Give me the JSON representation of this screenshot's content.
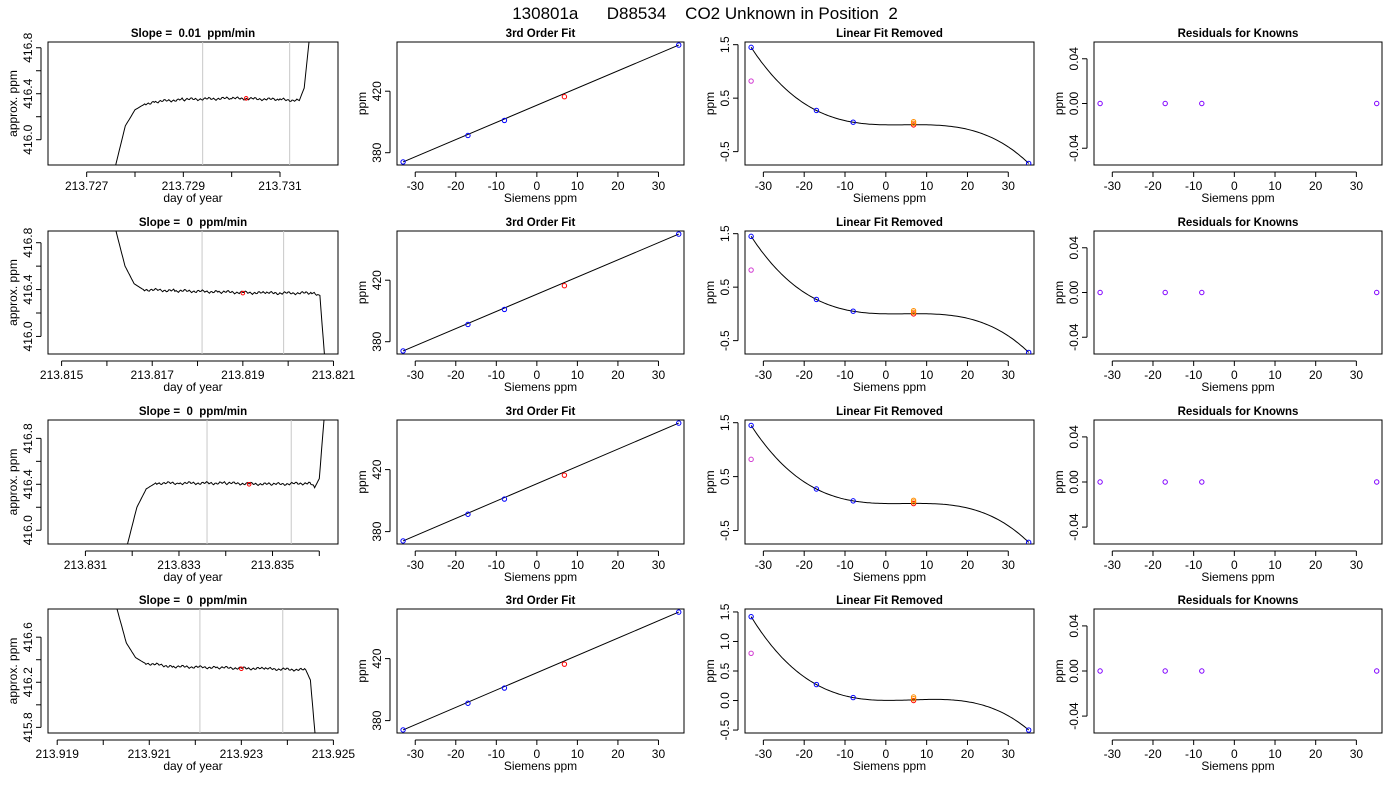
{
  "figure_title": "130801a      D88534    CO2 Unknown in Position  2",
  "colors": {
    "trace": "#000000",
    "window_line": "#c8c8c8",
    "mean_marker": "#ff0000",
    "known": "#0000ff",
    "unknown": "#ff0000",
    "unknown_alt": "#ff8c00",
    "lin_extra": "#d23cd2",
    "residual": "#8000ff"
  },
  "chart_data": [
    {
      "type": "line",
      "row": 1,
      "panel": "trace",
      "title": "Slope =  0.01  ppm/min",
      "xlabel": "day of year",
      "ylabel": "approx. ppm",
      "xlim": [
        213.7262,
        213.7322
      ],
      "ylim": [
        415.78,
        416.85
      ],
      "xticks": [
        213.727,
        213.728,
        213.729,
        213.73,
        213.731
      ],
      "xtick_labels": [
        "213.727",
        "",
        "213.729",
        "",
        "213.731"
      ],
      "yticks": [
        416.0,
        416.2,
        416.4,
        416.6,
        416.8
      ],
      "ytick_labels": [
        "416.0",
        "",
        "416.4",
        "",
        "416.8"
      ],
      "window": [
        213.7294,
        213.7312
      ],
      "mean_marker": {
        "x": 213.7303,
        "y": 416.36
      },
      "trace": [
        [
          213.7276,
          415.78
        ],
        [
          213.7278,
          416.12
        ],
        [
          213.728,
          416.26
        ],
        [
          213.7282,
          416.31
        ],
        [
          213.7284,
          416.33
        ],
        [
          213.729,
          416.35
        ],
        [
          213.73,
          416.36
        ],
        [
          213.731,
          416.35
        ],
        [
          213.7314,
          416.34
        ],
        [
          213.7315,
          416.45
        ],
        [
          213.7316,
          416.85
        ]
      ]
    },
    {
      "type": "scatter",
      "row": 1,
      "panel": "fit3",
      "title": "3rd Order Fit",
      "xlabel": "Siemens ppm",
      "ylabel": "ppm",
      "xlim": [
        -34.5,
        36.3
      ],
      "ylim": [
        372,
        452
      ],
      "xticks": [
        -30,
        -20,
        -10,
        0,
        10,
        20,
        30
      ],
      "yticks": [
        380,
        420
      ],
      "line": [
        [
          -33,
          374
        ],
        [
          35,
          450
        ]
      ],
      "knowns": [
        {
          "x": -33,
          "y": 374
        },
        {
          "x": -17,
          "y": 391.2
        },
        {
          "x": -8,
          "y": 401
        },
        {
          "x": 35,
          "y": 450
        }
      ],
      "unknown": {
        "x": 6.8,
        "y": 416.4
      }
    },
    {
      "type": "scatter",
      "row": 1,
      "panel": "linfit",
      "title": "Linear Fit Removed",
      "xlabel": "Siemens ppm",
      "ylabel": "ppm",
      "xlim": [
        -34.5,
        36.3
      ],
      "ylim": [
        -0.75,
        1.55
      ],
      "xticks": [
        -30,
        -20,
        -10,
        0,
        10,
        20,
        30
      ],
      "yticks": [
        -0.5,
        0.5,
        1.5
      ],
      "knowns": [
        {
          "x": -33,
          "y": 1.45
        },
        {
          "x": -17,
          "y": 0.27
        },
        {
          "x": -8,
          "y": 0.05
        },
        {
          "x": 35,
          "y": -0.72
        }
      ],
      "unknowns": [
        {
          "x": 6.8,
          "y": 0.0
        },
        {
          "x": 6.8,
          "y": 0.03
        },
        {
          "x": 6.8,
          "y": 0.06
        }
      ],
      "extra": {
        "x": -33,
        "y": 0.82
      }
    },
    {
      "type": "scatter",
      "row": 1,
      "panel": "resid",
      "title": "Residuals for Knowns",
      "xlabel": "Siemens ppm",
      "ylabel": "ppm",
      "xlim": [
        -34.5,
        36.3
      ],
      "ylim": [
        -0.055,
        0.055
      ],
      "xticks": [
        -30,
        -20,
        -10,
        0,
        10,
        20,
        30
      ],
      "yticks": [
        -0.04,
        0.0,
        0.04
      ],
      "points": [
        {
          "x": -33,
          "y": 0
        },
        {
          "x": -17,
          "y": 0
        },
        {
          "x": -8,
          "y": 0
        },
        {
          "x": 35,
          "y": 0
        }
      ]
    },
    {
      "type": "line",
      "row": 2,
      "panel": "trace",
      "title": "Slope =  0  ppm/min",
      "xlabel": "day of year",
      "ylabel": "approx. ppm",
      "xlim": [
        213.8147,
        213.8211
      ],
      "ylim": [
        415.85,
        416.9
      ],
      "xticks": [
        213.815,
        213.816,
        213.817,
        213.818,
        213.819,
        213.82,
        213.821
      ],
      "xtick_labels": [
        "213.815",
        "",
        "213.817",
        "",
        "213.819",
        "",
        "213.821"
      ],
      "yticks": [
        416.0,
        416.2,
        416.4,
        416.6,
        416.8
      ],
      "ytick_labels": [
        "416.0",
        "",
        "416.4",
        "",
        "416.8"
      ],
      "window": [
        213.8181,
        213.8199
      ],
      "mean_marker": {
        "x": 213.819,
        "y": 416.37
      },
      "trace": [
        [
          213.8162,
          416.9
        ],
        [
          213.8164,
          416.6
        ],
        [
          213.8166,
          416.45
        ],
        [
          213.8168,
          416.4
        ],
        [
          213.8175,
          416.39
        ],
        [
          213.8185,
          416.38
        ],
        [
          213.8195,
          416.37
        ],
        [
          213.8205,
          416.37
        ],
        [
          213.8207,
          416.35
        ],
        [
          213.8208,
          415.85
        ]
      ]
    },
    {
      "type": "scatter",
      "row": 2,
      "panel": "fit3",
      "title": "3rd Order Fit",
      "xlabel": "Siemens ppm",
      "ylabel": "ppm",
      "xlim": [
        -34.5,
        36.3
      ],
      "ylim": [
        372,
        452
      ],
      "xticks": [
        -30,
        -20,
        -10,
        0,
        10,
        20,
        30
      ],
      "yticks": [
        380,
        420
      ],
      "line": [
        [
          -33,
          374
        ],
        [
          35,
          450
        ]
      ],
      "knowns": [
        {
          "x": -33,
          "y": 374
        },
        {
          "x": -17,
          "y": 391.2
        },
        {
          "x": -8,
          "y": 401
        },
        {
          "x": 35,
          "y": 450
        }
      ],
      "unknown": {
        "x": 6.8,
        "y": 416.4
      }
    },
    {
      "type": "scatter",
      "row": 2,
      "panel": "linfit",
      "title": "Linear Fit Removed",
      "xlabel": "Siemens ppm",
      "ylabel": "ppm",
      "xlim": [
        -34.5,
        36.3
      ],
      "ylim": [
        -0.75,
        1.55
      ],
      "xticks": [
        -30,
        -20,
        -10,
        0,
        10,
        20,
        30
      ],
      "yticks": [
        -0.5,
        0.5,
        1.5
      ],
      "knowns": [
        {
          "x": -33,
          "y": 1.45
        },
        {
          "x": -17,
          "y": 0.27
        },
        {
          "x": -8,
          "y": 0.05
        },
        {
          "x": 35,
          "y": -0.72
        }
      ],
      "unknowns": [
        {
          "x": 6.8,
          "y": 0.0
        },
        {
          "x": 6.8,
          "y": 0.03
        },
        {
          "x": 6.8,
          "y": 0.06
        }
      ],
      "extra": {
        "x": -33,
        "y": 0.82
      }
    },
    {
      "type": "scatter",
      "row": 2,
      "panel": "resid",
      "title": "Residuals for Knowns",
      "xlabel": "Siemens ppm",
      "ylabel": "ppm",
      "xlim": [
        -34.5,
        36.3
      ],
      "ylim": [
        -0.055,
        0.055
      ],
      "xticks": [
        -30,
        -20,
        -10,
        0,
        10,
        20,
        30
      ],
      "yticks": [
        -0.04,
        0.0,
        0.04
      ],
      "points": [
        {
          "x": -33,
          "y": 0
        },
        {
          "x": -17,
          "y": 0
        },
        {
          "x": -8,
          "y": 0
        },
        {
          "x": 35,
          "y": 0
        }
      ]
    },
    {
      "type": "line",
      "row": 3,
      "panel": "trace",
      "title": "Slope =  0  ppm/min",
      "xlabel": "day of year",
      "ylabel": "approx. ppm",
      "xlim": [
        213.8302,
        213.8364
      ],
      "ylim": [
        415.88,
        416.96
      ],
      "xticks": [
        213.831,
        213.832,
        213.833,
        213.834,
        213.835,
        213.836
      ],
      "xtick_labels": [
        "213.831",
        "",
        "213.833",
        "",
        "213.835",
        ""
      ],
      "yticks": [
        416.0,
        416.2,
        416.4,
        416.6,
        416.8
      ],
      "ytick_labels": [
        "416.0",
        "",
        "416.4",
        "",
        "416.8"
      ],
      "window": [
        213.8336,
        213.8354
      ],
      "mean_marker": {
        "x": 213.8345,
        "y": 416.4
      },
      "trace": [
        [
          213.8319,
          415.88
        ],
        [
          213.8321,
          416.2
        ],
        [
          213.8323,
          416.36
        ],
        [
          213.8325,
          416.41
        ],
        [
          213.833,
          416.41
        ],
        [
          213.834,
          416.41
        ],
        [
          213.835,
          416.4
        ],
        [
          213.8358,
          416.41
        ],
        [
          213.8359,
          416.37
        ],
        [
          213.836,
          416.45
        ],
        [
          213.8361,
          416.96
        ]
      ]
    },
    {
      "type": "scatter",
      "row": 3,
      "panel": "fit3",
      "title": "3rd Order Fit",
      "xlabel": "Siemens ppm",
      "ylabel": "ppm",
      "xlim": [
        -34.5,
        36.3
      ],
      "ylim": [
        372,
        452
      ],
      "xticks": [
        -30,
        -20,
        -10,
        0,
        10,
        20,
        30
      ],
      "yticks": [
        380,
        420
      ],
      "line": [
        [
          -33,
          374
        ],
        [
          35,
          450
        ]
      ],
      "knowns": [
        {
          "x": -33,
          "y": 374
        },
        {
          "x": -17,
          "y": 391.2
        },
        {
          "x": -8,
          "y": 401
        },
        {
          "x": 35,
          "y": 450
        }
      ],
      "unknown": {
        "x": 6.8,
        "y": 416.4
      }
    },
    {
      "type": "scatter",
      "row": 3,
      "panel": "linfit",
      "title": "Linear Fit Removed",
      "xlabel": "Siemens ppm",
      "ylabel": "ppm",
      "xlim": [
        -34.5,
        36.3
      ],
      "ylim": [
        -0.75,
        1.55
      ],
      "xticks": [
        -30,
        -20,
        -10,
        0,
        10,
        20,
        30
      ],
      "yticks": [
        -0.5,
        0.5,
        1.5
      ],
      "knowns": [
        {
          "x": -33,
          "y": 1.45
        },
        {
          "x": -17,
          "y": 0.27
        },
        {
          "x": -8,
          "y": 0.05
        },
        {
          "x": 35,
          "y": -0.72
        }
      ],
      "unknowns": [
        {
          "x": 6.8,
          "y": 0.0
        },
        {
          "x": 6.8,
          "y": 0.03
        },
        {
          "x": 6.8,
          "y": 0.06
        }
      ],
      "extra": {
        "x": -33,
        "y": 0.82
      }
    },
    {
      "type": "scatter",
      "row": 3,
      "panel": "resid",
      "title": "Residuals for Knowns",
      "xlabel": "Siemens ppm",
      "ylabel": "ppm",
      "xlim": [
        -34.5,
        36.3
      ],
      "ylim": [
        -0.055,
        0.055
      ],
      "xticks": [
        -30,
        -20,
        -10,
        0,
        10,
        20,
        30
      ],
      "yticks": [
        -0.04,
        0.0,
        0.04
      ],
      "points": [
        {
          "x": -33,
          "y": 0
        },
        {
          "x": -17,
          "y": 0
        },
        {
          "x": -8,
          "y": 0
        },
        {
          "x": 35,
          "y": 0
        }
      ]
    },
    {
      "type": "line",
      "row": 4,
      "panel": "trace",
      "title": "Slope =  0  ppm/min",
      "xlabel": "day of year",
      "ylabel": "approx. ppm",
      "xlim": [
        213.9188,
        213.9251
      ],
      "ylim": [
        415.75,
        416.85
      ],
      "xticks": [
        213.919,
        213.92,
        213.921,
        213.922,
        213.923,
        213.924,
        213.925
      ],
      "xtick_labels": [
        "213.919",
        "",
        "213.921",
        "",
        "213.923",
        "",
        "213.925"
      ],
      "yticks": [
        415.8,
        416.0,
        416.2,
        416.4,
        416.6
      ],
      "ytick_labels": [
        "415.8",
        "",
        "416.2",
        "",
        "416.6"
      ],
      "window": [
        213.9221,
        213.9239
      ],
      "mean_marker": {
        "x": 213.923,
        "y": 416.32
      },
      "trace": [
        [
          213.9203,
          416.85
        ],
        [
          213.9205,
          416.55
        ],
        [
          213.9207,
          416.42
        ],
        [
          213.9209,
          416.37
        ],
        [
          213.9215,
          416.34
        ],
        [
          213.9225,
          416.33
        ],
        [
          213.9235,
          416.32
        ],
        [
          213.9244,
          416.31
        ],
        [
          213.9245,
          416.22
        ],
        [
          213.9246,
          415.75
        ]
      ]
    },
    {
      "type": "scatter",
      "row": 4,
      "panel": "fit3",
      "title": "3rd Order Fit",
      "xlabel": "Siemens ppm",
      "ylabel": "ppm",
      "xlim": [
        -34.5,
        36.3
      ],
      "ylim": [
        372,
        452
      ],
      "xticks": [
        -30,
        -20,
        -10,
        0,
        10,
        20,
        30
      ],
      "yticks": [
        380,
        420
      ],
      "line": [
        [
          -33,
          374
        ],
        [
          35,
          450
        ]
      ],
      "knowns": [
        {
          "x": -33,
          "y": 374
        },
        {
          "x": -17,
          "y": 391.2
        },
        {
          "x": -8,
          "y": 401
        },
        {
          "x": 35,
          "y": 450
        }
      ],
      "unknown": {
        "x": 6.8,
        "y": 416.4
      }
    },
    {
      "type": "scatter",
      "row": 4,
      "panel": "linfit",
      "title": "Linear Fit Removed",
      "xlabel": "Siemens ppm",
      "ylabel": "ppm",
      "xlim": [
        -34.5,
        36.3
      ],
      "ylim": [
        -0.55,
        1.55
      ],
      "xticks": [
        -30,
        -20,
        -10,
        0,
        10,
        20,
        30
      ],
      "yticks": [
        -0.5,
        0.0,
        0.5,
        1.0,
        1.5
      ],
      "knowns": [
        {
          "x": -33,
          "y": 1.42
        },
        {
          "x": -17,
          "y": 0.27
        },
        {
          "x": -8,
          "y": 0.05
        },
        {
          "x": 35,
          "y": -0.5
        }
      ],
      "unknowns": [
        {
          "x": 6.8,
          "y": 0.0
        },
        {
          "x": 6.8,
          "y": 0.03
        },
        {
          "x": 6.8,
          "y": 0.06
        }
      ],
      "extra": {
        "x": -33,
        "y": 0.8
      }
    },
    {
      "type": "scatter",
      "row": 4,
      "panel": "resid",
      "title": "Residuals for Knowns",
      "xlabel": "Siemens ppm",
      "ylabel": "ppm",
      "xlim": [
        -34.5,
        36.3
      ],
      "ylim": [
        -0.055,
        0.055
      ],
      "xticks": [
        -30,
        -20,
        -10,
        0,
        10,
        20,
        30
      ],
      "yticks": [
        -0.04,
        0.0,
        0.04
      ],
      "points": [
        {
          "x": -33,
          "y": 0
        },
        {
          "x": -17,
          "y": 0
        },
        {
          "x": -8,
          "y": 0
        },
        {
          "x": 35,
          "y": 0
        }
      ]
    }
  ]
}
